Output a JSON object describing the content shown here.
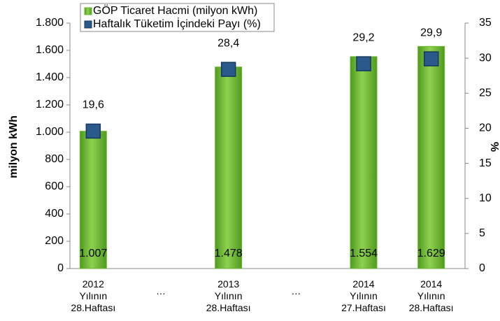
{
  "chart_data": {
    "type": "bar",
    "categories": [
      "2012 Yılının 28.Haftası",
      "…",
      "2013 Yılının 28.Haftası",
      "…",
      "2014 Yılının 27.Haftası",
      "2014 Yılının 28.Haftası"
    ],
    "series": [
      {
        "name": "GÖP Ticaret Hacmi (milyon kWh)",
        "color": "#66b82e",
        "type": "bar",
        "values": [
          1007,
          null,
          1478,
          null,
          1554,
          1629
        ],
        "value_labels": [
          "1.007",
          null,
          "1.478",
          null,
          "1.554",
          "1.629"
        ]
      },
      {
        "name": "Haftalık Tüketim İçindeki Payı (%)",
        "color": "#2a5a8c",
        "type": "marker",
        "axis": "y2",
        "values": [
          19.6,
          null,
          28.4,
          null,
          29.2,
          29.9
        ],
        "value_labels": [
          "19,6",
          null,
          "28,4",
          null,
          "29,2",
          "29,9"
        ]
      }
    ],
    "ylabel": "milyon kWh",
    "y2label": "%",
    "ylim": [
      0,
      1800
    ],
    "yticks": [
      0,
      200,
      400,
      600,
      800,
      {
        "value": 1000,
        "label": "1.000"
      },
      {
        "value": 1200,
        "label": "1.200"
      },
      {
        "value": 1400,
        "label": "1.400"
      },
      {
        "value": 1600,
        "label": "1.600"
      },
      {
        "value": 1800,
        "label": "1.800"
      }
    ],
    "y2lim": [
      0,
      35
    ],
    "y2ticks": [
      0,
      5,
      10,
      15,
      20,
      25,
      30,
      35
    ],
    "legend": "top-left"
  }
}
